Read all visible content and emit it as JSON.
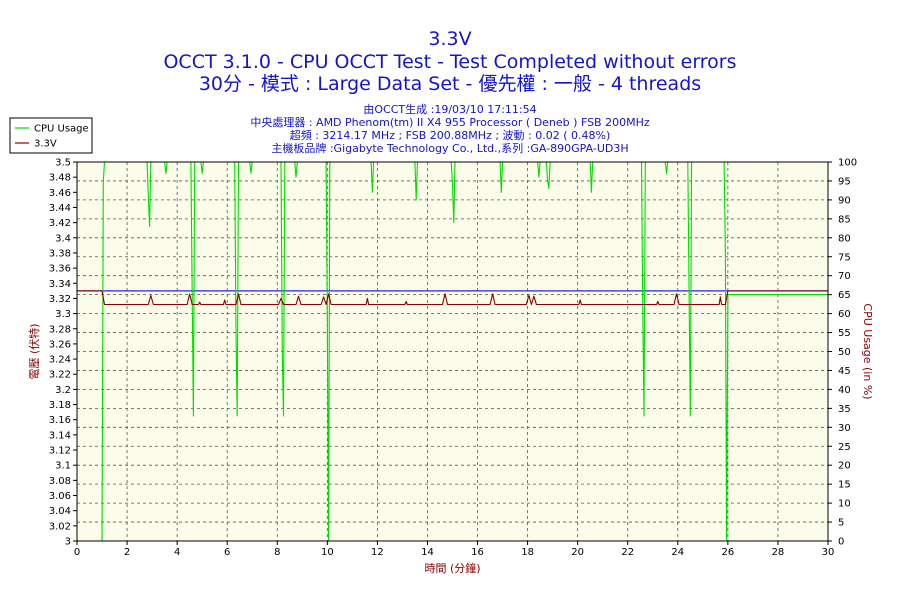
{
  "header": {
    "title": "3.3V",
    "subtitle1": "OCCT 3.1.0 - CPU OCCT Test - Test Completed without errors",
    "subtitle2": "30分 - 模式 : Large Data Set - 優先權 : 一般 - 4 threads",
    "info1": "由OCCT生成 :19/03/10 17:11:54",
    "info2": "中央處理器 : AMD Phenom(tm) II X4 955 Processor ( Deneb ) FSB 200MHz",
    "info3": "超頻 : 3214.17 MHz ; FSB 200.88MHz ; 波動 : 0.02 ( 0.48%)",
    "info4": "主機板品牌 :Gigabyte Technology Co., Ltd.,系列 :GA-890GPA-UD3H"
  },
  "colors": {
    "cpu_usage": "#00dd00",
    "voltage": "#8b0000",
    "reference": "#2020ff",
    "plot_bg": "#fcfcea",
    "grid": "#555555"
  },
  "chart_data": {
    "type": "line",
    "title": "3.3V",
    "xlabel": "時間 (分鐘)",
    "ylabel": "電壓 (伏特)",
    "y2label": "CPU Usage (in %)",
    "xlim": [
      0,
      30
    ],
    "ylim": [
      3.0,
      3.5
    ],
    "y2lim": [
      0,
      100
    ],
    "grid": true,
    "legend_position": "top-left",
    "x_ticks": [
      0,
      2,
      4,
      6,
      8,
      10,
      12,
      14,
      16,
      18,
      20,
      22,
      24,
      26,
      28,
      30
    ],
    "y_ticks": [
      3,
      3.02,
      3.04,
      3.06,
      3.08,
      3.1,
      3.12,
      3.14,
      3.16,
      3.18,
      3.2,
      3.22,
      3.24,
      3.26,
      3.28,
      3.3,
      3.32,
      3.34,
      3.36,
      3.38,
      3.4,
      3.42,
      3.44,
      3.46,
      3.48,
      3.5
    ],
    "y2_ticks": [
      0,
      5,
      10,
      15,
      20,
      25,
      30,
      35,
      40,
      45,
      50,
      55,
      60,
      65,
      70,
      75,
      80,
      85,
      90,
      95,
      100
    ],
    "reference_line": 3.33,
    "series": [
      {
        "name": "CPU Usage",
        "axis": "right",
        "points": [
          [
            0,
            0
          ],
          [
            0.95,
            0
          ],
          [
            1.0,
            0
          ],
          [
            1.05,
            95
          ],
          [
            1.1,
            100
          ],
          [
            2.8,
            100
          ],
          [
            2.85,
            91
          ],
          [
            2.9,
            83
          ],
          [
            2.95,
            100
          ],
          [
            3.5,
            100
          ],
          [
            3.55,
            97
          ],
          [
            3.6,
            100
          ],
          [
            4.55,
            100
          ],
          [
            4.6,
            65
          ],
          [
            4.65,
            33
          ],
          [
            4.7,
            100
          ],
          [
            4.95,
            100
          ],
          [
            5.0,
            97
          ],
          [
            5.05,
            100
          ],
          [
            6.3,
            100
          ],
          [
            6.35,
            55
          ],
          [
            6.4,
            33
          ],
          [
            6.45,
            100
          ],
          [
            6.9,
            100
          ],
          [
            6.95,
            97
          ],
          [
            7.0,
            100
          ],
          [
            8.15,
            100
          ],
          [
            8.2,
            50
          ],
          [
            8.25,
            33
          ],
          [
            8.3,
            100
          ],
          [
            8.7,
            100
          ],
          [
            8.75,
            96
          ],
          [
            8.8,
            100
          ],
          [
            9.95,
            100
          ],
          [
            10.0,
            60
          ],
          [
            10.05,
            0
          ],
          [
            10.1,
            100
          ],
          [
            11.75,
            100
          ],
          [
            11.8,
            92
          ],
          [
            11.85,
            100
          ],
          [
            13.5,
            100
          ],
          [
            13.55,
            90
          ],
          [
            13.6,
            100
          ],
          [
            14.95,
            100
          ],
          [
            15.0,
            94
          ],
          [
            15.05,
            84
          ],
          [
            15.1,
            100
          ],
          [
            16.9,
            100
          ],
          [
            16.95,
            92
          ],
          [
            17.0,
            100
          ],
          [
            18.4,
            100
          ],
          [
            18.45,
            96
          ],
          [
            18.5,
            100
          ],
          [
            18.75,
            100
          ],
          [
            18.8,
            95
          ],
          [
            18.85,
            93
          ],
          [
            18.9,
            100
          ],
          [
            20.5,
            100
          ],
          [
            20.55,
            92
          ],
          [
            20.6,
            100
          ],
          [
            22.55,
            100
          ],
          [
            22.6,
            60
          ],
          [
            22.65,
            33
          ],
          [
            22.7,
            100
          ],
          [
            23.5,
            100
          ],
          [
            23.55,
            97
          ],
          [
            23.6,
            100
          ],
          [
            24.4,
            100
          ],
          [
            24.45,
            65
          ],
          [
            24.5,
            33
          ],
          [
            24.55,
            100
          ],
          [
            25.85,
            100
          ],
          [
            25.9,
            75
          ],
          [
            25.95,
            0
          ],
          [
            26.0,
            65
          ],
          [
            30,
            65
          ]
        ]
      },
      {
        "name": "3.3V",
        "axis": "left",
        "points": [
          [
            0,
            3.33
          ],
          [
            1.0,
            3.33
          ],
          [
            1.1,
            3.312
          ],
          [
            2.85,
            3.312
          ],
          [
            2.95,
            3.324
          ],
          [
            3.05,
            3.312
          ],
          [
            4.4,
            3.312
          ],
          [
            4.5,
            3.326
          ],
          [
            4.6,
            3.312
          ],
          [
            4.85,
            3.312
          ],
          [
            4.9,
            3.315
          ],
          [
            4.95,
            3.312
          ],
          [
            5.85,
            3.312
          ],
          [
            5.9,
            3.318
          ],
          [
            5.95,
            3.312
          ],
          [
            6.35,
            3.312
          ],
          [
            6.45,
            3.326
          ],
          [
            6.55,
            3.312
          ],
          [
            8.05,
            3.312
          ],
          [
            8.15,
            3.32
          ],
          [
            8.25,
            3.312
          ],
          [
            8.75,
            3.312
          ],
          [
            8.85,
            3.323
          ],
          [
            8.95,
            3.312
          ],
          [
            9.75,
            3.312
          ],
          [
            9.85,
            3.322
          ],
          [
            9.95,
            3.312
          ],
          [
            10.05,
            3.326
          ],
          [
            10.15,
            3.312
          ],
          [
            11.55,
            3.312
          ],
          [
            11.6,
            3.32
          ],
          [
            11.65,
            3.312
          ],
          [
            13.1,
            3.312
          ],
          [
            13.15,
            3.316
          ],
          [
            13.2,
            3.312
          ],
          [
            14.6,
            3.312
          ],
          [
            14.7,
            3.326
          ],
          [
            14.8,
            3.312
          ],
          [
            16.5,
            3.312
          ],
          [
            16.6,
            3.326
          ],
          [
            16.7,
            3.312
          ],
          [
            17.95,
            3.312
          ],
          [
            18.05,
            3.324
          ],
          [
            18.15,
            3.312
          ],
          [
            18.25,
            3.323
          ],
          [
            18.35,
            3.312
          ],
          [
            20.05,
            3.312
          ],
          [
            20.1,
            3.318
          ],
          [
            20.15,
            3.312
          ],
          [
            23.15,
            3.312
          ],
          [
            23.2,
            3.316
          ],
          [
            23.25,
            3.312
          ],
          [
            23.85,
            3.312
          ],
          [
            23.95,
            3.326
          ],
          [
            24.05,
            3.312
          ],
          [
            25.65,
            3.312
          ],
          [
            25.7,
            3.322
          ],
          [
            25.75,
            3.312
          ],
          [
            25.9,
            3.312
          ],
          [
            26.0,
            3.33
          ],
          [
            30,
            3.33
          ]
        ]
      }
    ]
  }
}
